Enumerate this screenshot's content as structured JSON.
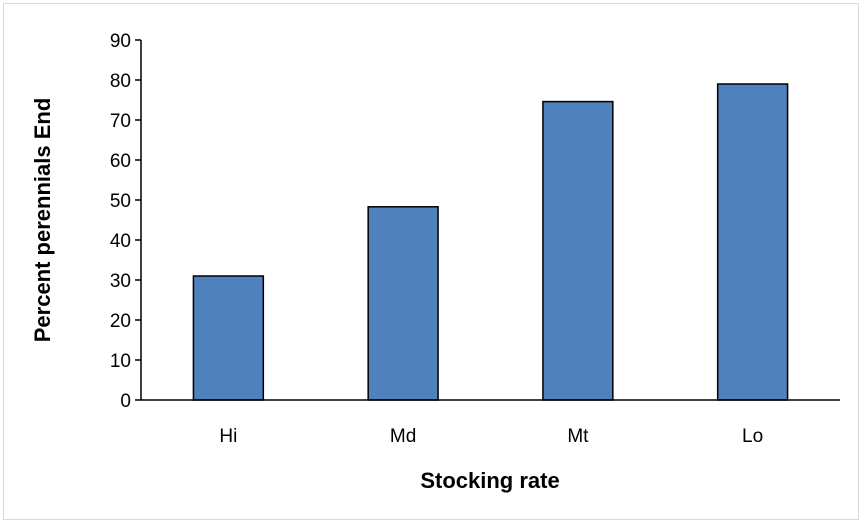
{
  "chart_data": {
    "type": "bar",
    "title": "",
    "xlabel": "Stocking rate",
    "ylabel": "Percent perennials End",
    "categories": [
      "Hi",
      "Md",
      "Mt",
      "Lo"
    ],
    "values": [
      31,
      48.3,
      74.6,
      79
    ],
    "ylim": [
      0,
      90
    ],
    "yticks": [
      0,
      10,
      20,
      30,
      40,
      50,
      60,
      70,
      80,
      90
    ],
    "grid": false,
    "legend": "none",
    "colors": {
      "bar_fill": "#4f81bd",
      "bar_edge": "#000000",
      "axis": "#000000"
    }
  }
}
